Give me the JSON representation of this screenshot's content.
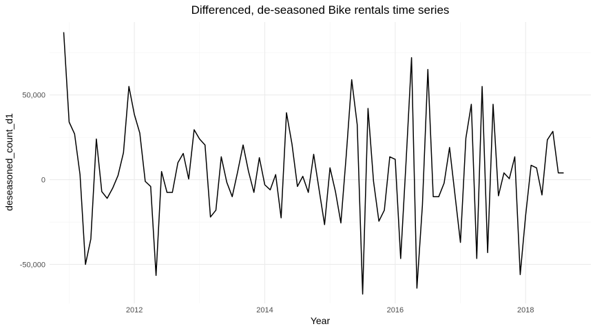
{
  "chart_data": {
    "type": "line",
    "title": "Differenced, de-seasoned Bike rentals time series",
    "xlabel": "Year",
    "ylabel": "deseasoned_count_d1",
    "x_ticks": [
      2012,
      2014,
      2016,
      2018
    ],
    "x_tick_labels": [
      "2012",
      "2014",
      "2016",
      "2018"
    ],
    "y_ticks": [
      -50000,
      0,
      50000
    ],
    "y_tick_labels": [
      "-50,000",
      "0",
      "50,000"
    ],
    "xlim": [
      2010.7,
      2019.0
    ],
    "ylim": [
      -73000,
      93000
    ],
    "grid": true,
    "legend": "none",
    "series": [
      {
        "color": "#000000",
        "x": [
          2010.917,
          2011.0,
          2011.083,
          2011.167,
          2011.25,
          2011.333,
          2011.417,
          2011.5,
          2011.583,
          2011.667,
          2011.75,
          2011.833,
          2011.917,
          2012.0,
          2012.083,
          2012.167,
          2012.25,
          2012.333,
          2012.417,
          2012.5,
          2012.583,
          2012.667,
          2012.75,
          2012.833,
          2012.917,
          2013.0,
          2013.083,
          2013.167,
          2013.25,
          2013.333,
          2013.417,
          2013.5,
          2013.583,
          2013.667,
          2013.75,
          2013.833,
          2013.917,
          2014.0,
          2014.083,
          2014.167,
          2014.25,
          2014.333,
          2014.417,
          2014.5,
          2014.583,
          2014.667,
          2014.75,
          2014.833,
          2014.917,
          2015.0,
          2015.083,
          2015.167,
          2015.25,
          2015.333,
          2015.417,
          2015.5,
          2015.583,
          2015.667,
          2015.75,
          2015.833,
          2015.917,
          2016.0,
          2016.083,
          2016.167,
          2016.25,
          2016.333,
          2016.417,
          2016.5,
          2016.583,
          2016.667,
          2016.75,
          2016.833,
          2016.917,
          2017.0,
          2017.083,
          2017.167,
          2017.25,
          2017.333,
          2017.417,
          2017.5,
          2017.583,
          2017.667,
          2017.75,
          2017.833,
          2017.917,
          2018.0,
          2018.083,
          2018.167,
          2018.25,
          2018.333,
          2018.417,
          2018.5,
          2018.583
        ],
        "values": [
          87000,
          34000,
          27000,
          3000,
          -50000,
          -35000,
          24000,
          -7000,
          -11000,
          -5000,
          2500,
          16000,
          55000,
          38500,
          27500,
          -1000,
          -4000,
          -56500,
          4800,
          -7500,
          -7500,
          10000,
          15500,
          400,
          29500,
          24000,
          20500,
          -22000,
          -18000,
          13500,
          -1500,
          -10000,
          4500,
          20500,
          5000,
          -7500,
          13000,
          -3000,
          -6000,
          3000,
          -22500,
          39500,
          21000,
          -4000,
          2000,
          -7500,
          15000,
          -6000,
          -26500,
          7000,
          -7000,
          -25500,
          15000,
          59000,
          32500,
          -67500,
          42000,
          -1000,
          -24500,
          -18000,
          13500,
          12000,
          -46500,
          11000,
          72000,
          -64000,
          -15000,
          65000,
          -10000,
          -10000,
          -2000,
          19000,
          -9000,
          -37000,
          24500,
          44500,
          -46500,
          55000,
          -43000,
          44500,
          -9500,
          4000,
          600,
          13500,
          -56000,
          -21000,
          8500,
          7000,
          -9000,
          23500,
          28500,
          4000,
          4000
        ]
      }
    ]
  }
}
